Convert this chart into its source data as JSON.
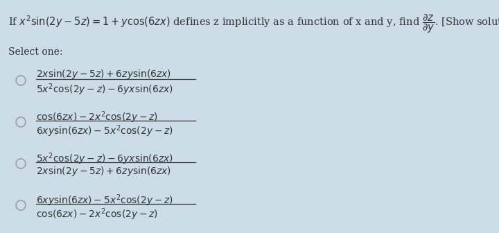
{
  "background_color": "#ccdde8",
  "text_color": "#333333",
  "circle_color": "#999999",
  "question": "If $x^2\\,\\sin(2y-5z)=1+y\\cos(6zx)$ defines z implicitly as a function of x and y, find $\\dfrac{\\partial z}{\\partial y}$. [Show solution.]",
  "select_label": "Select one:",
  "options": [
    [
      "$2x\\sin(2y-5z)+6zy\\sin(6zx)$",
      "$5x^2\\cos(2y-z)-6yx\\sin(6zx)$"
    ],
    [
      "$\\cos(6zx)-2x^2\\cos(2y-z)$",
      "$6xy\\sin(6zx)-5x^2\\cos(2y-z)$"
    ],
    [
      "$5x^2\\cos(2y-z)-6yx\\sin(6zx)$",
      "$2x\\sin(2y-5z)+6zy\\sin(6zx)$"
    ],
    [
      "$6xy\\sin(6zx)-5x^2\\cos(2y-z)$",
      "$\\cos(6zx)-2x^2\\cos(2y-z)$"
    ]
  ],
  "fig_width": 7.2,
  "fig_height": 3.36,
  "dpi": 100,
  "q_fontsize": 10.5,
  "opt_fontsize": 10.0
}
